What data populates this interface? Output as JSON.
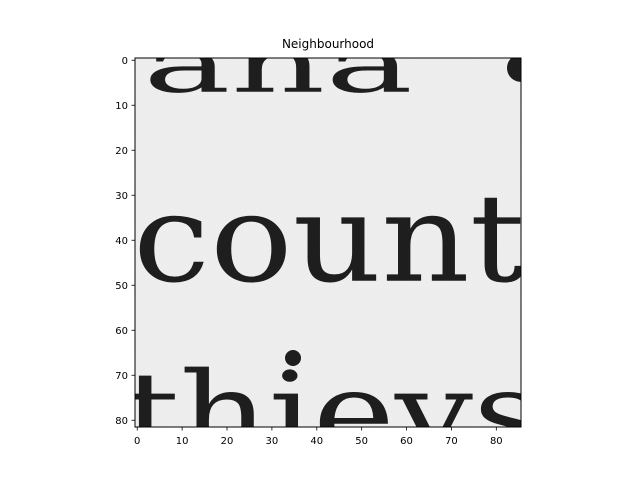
{
  "chart_data": {
    "type": "heatmap",
    "title": "Neighbourhood",
    "xlabel": "",
    "ylabel": "",
    "x_ticks": [
      0,
      10,
      20,
      30,
      40,
      50,
      60,
      70,
      80
    ],
    "y_ticks": [
      0,
      10,
      20,
      30,
      40,
      50,
      60,
      70,
      80
    ],
    "xlim": [
      -0.5,
      85.5
    ],
    "ylim": [
      81.5,
      -0.5
    ],
    "colormap": "gray",
    "background_color": "#f0f0f0",
    "ink_color": "#1e1e1e",
    "image_text_lines": [
      {
        "text": "ana",
        "row_baseline": 7
      },
      {
        "text": "count",
        "row_baseline": 49
      },
      {
        "text": "thievs",
        "row_baseline": 87
      }
    ]
  }
}
